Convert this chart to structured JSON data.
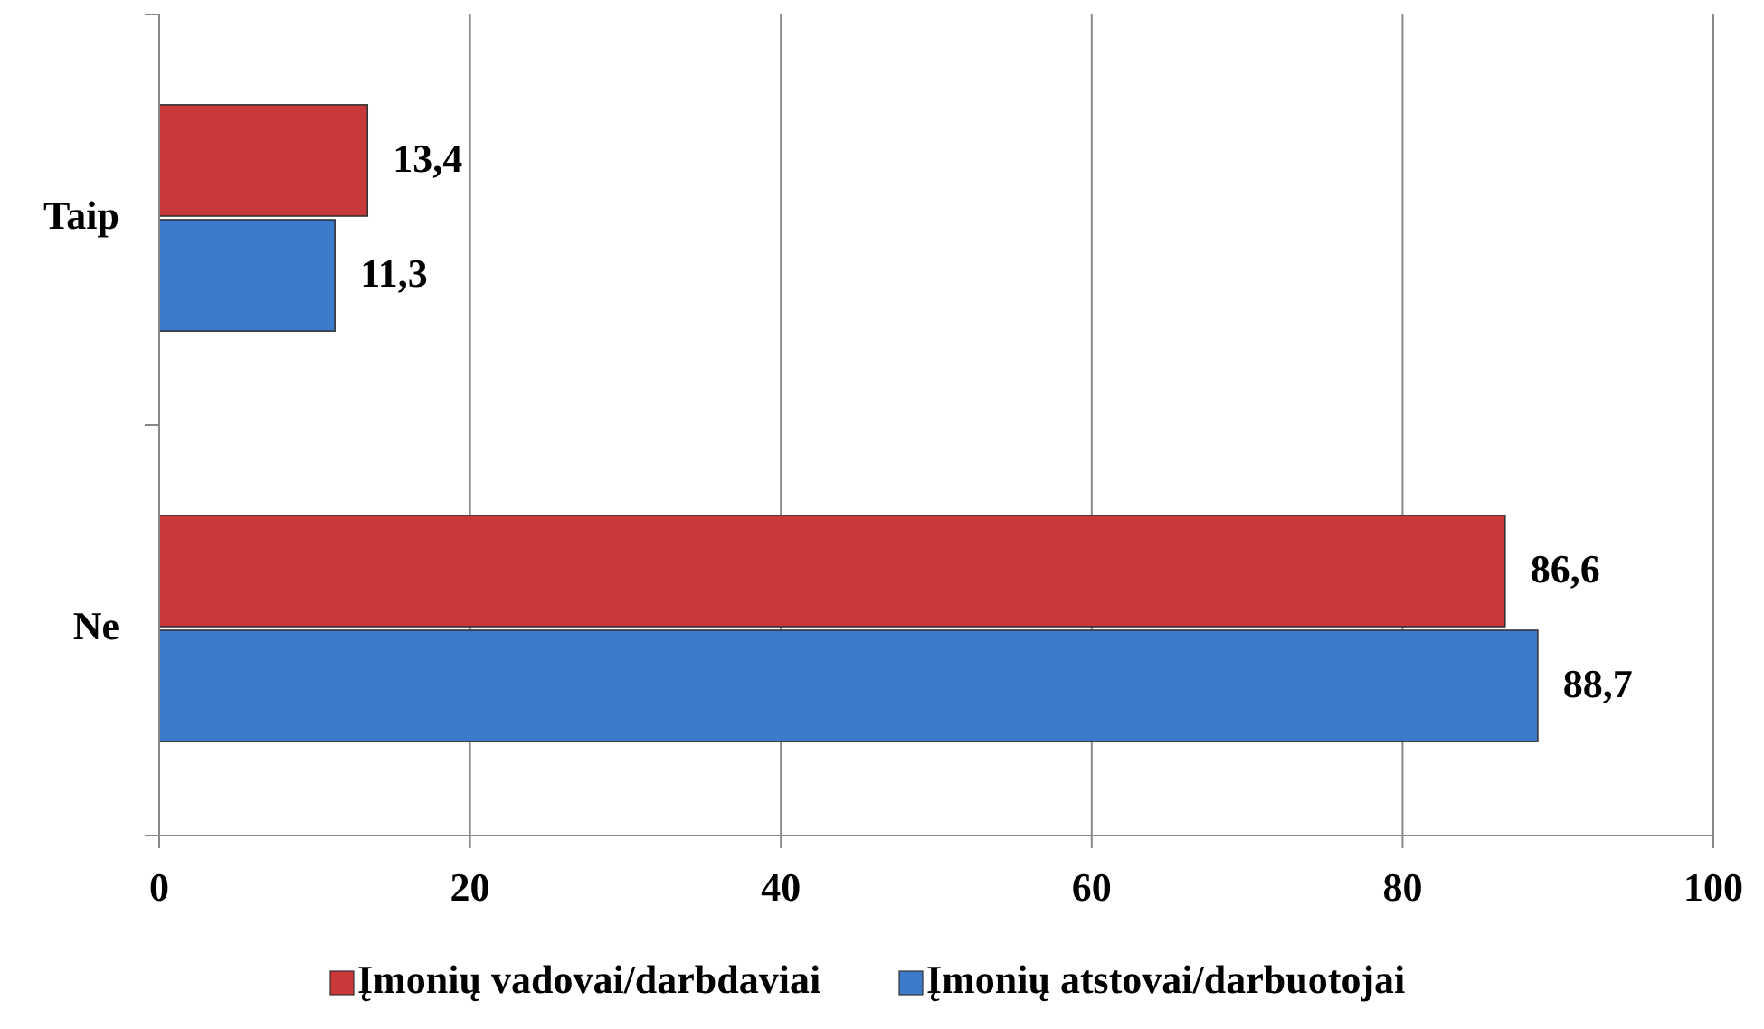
{
  "chart_data": {
    "type": "bar",
    "orientation": "horizontal",
    "categories": [
      "Taip",
      "Ne"
    ],
    "series": [
      {
        "name": "Įmonių vadovai/darbdaviai",
        "color": "#c9393a",
        "values": [
          13.4,
          86.6
        ],
        "value_labels": [
          "13,4",
          "86,6"
        ]
      },
      {
        "name": "Įmonių atstovai/darbuotojai",
        "color": "#3c7acb",
        "values": [
          11.3,
          88.7
        ],
        "value_labels": [
          "11,3",
          "88,7"
        ]
      }
    ],
    "xlim": [
      0,
      100
    ],
    "xticks": [
      0,
      20,
      40,
      60,
      80,
      100
    ],
    "grid": "x",
    "legend": "bottom"
  }
}
